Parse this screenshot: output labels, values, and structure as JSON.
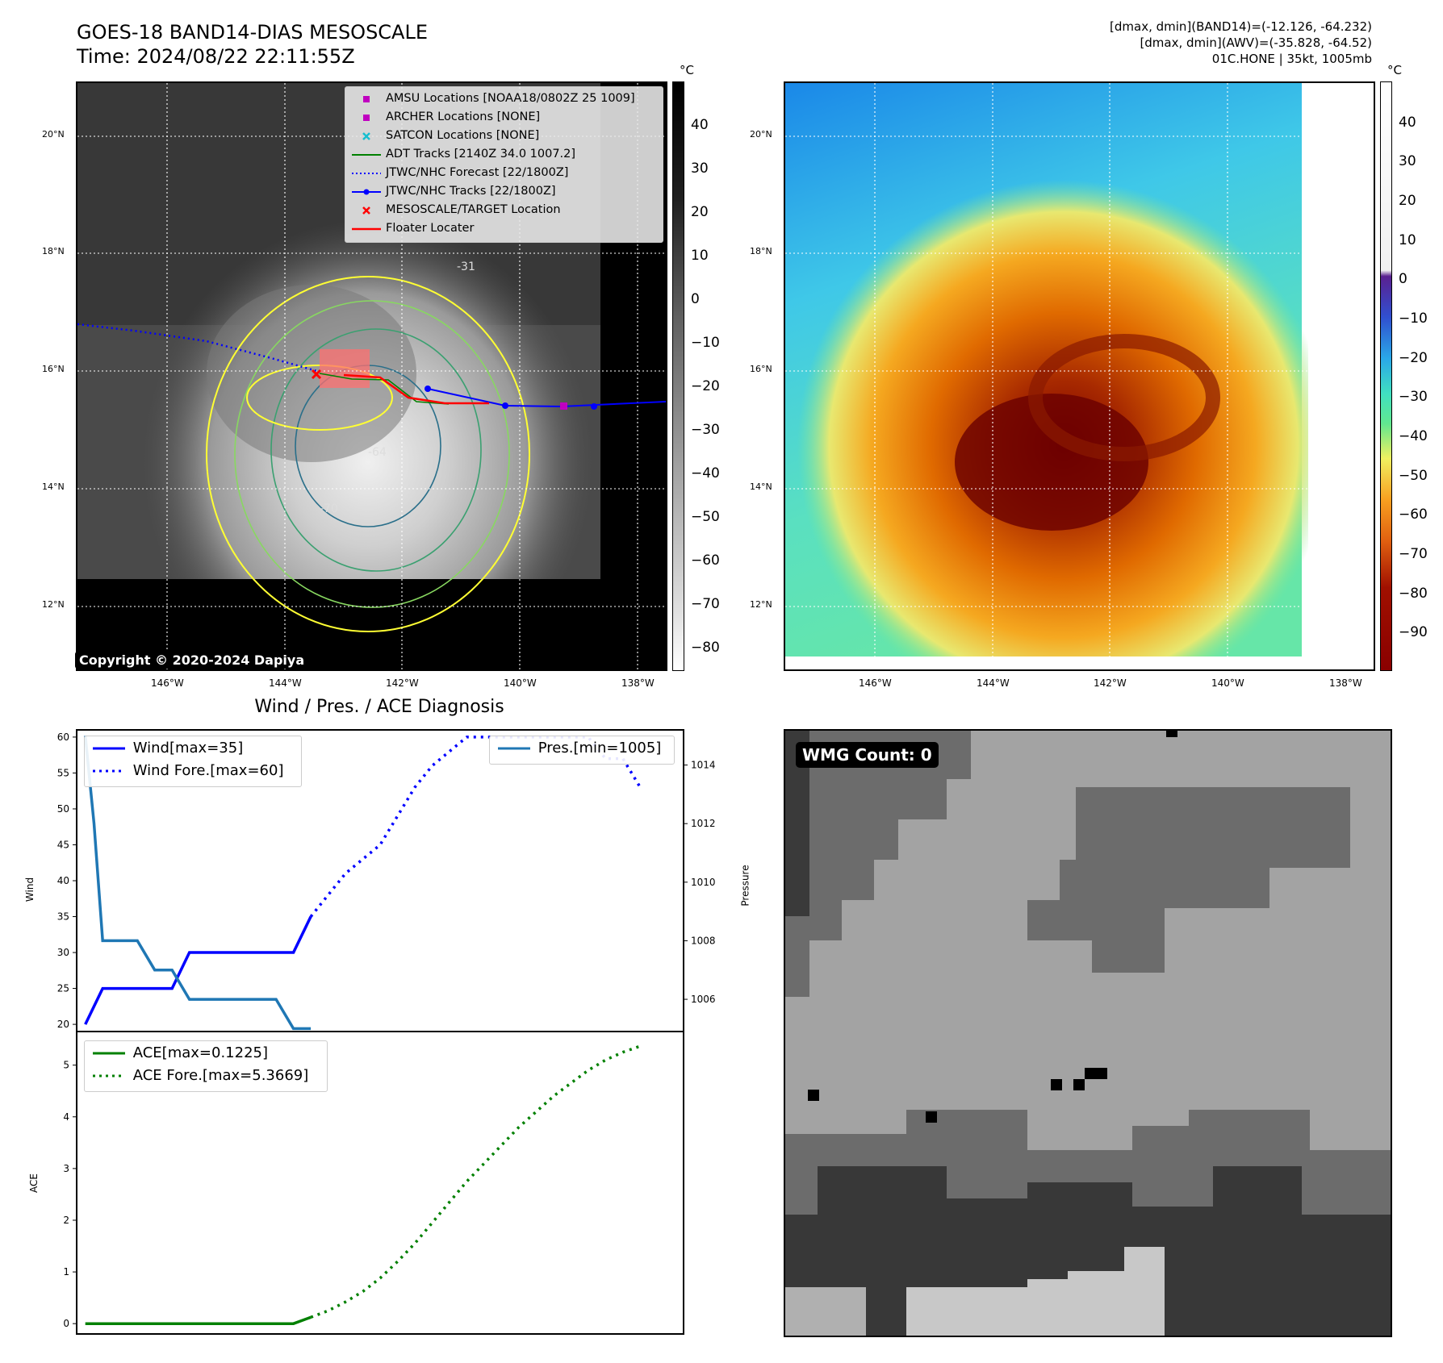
{
  "header": {
    "title": "GOES-18 BAND14-DIAS MESOSCALE",
    "time": "Time: 2024/08/22 22:11:55Z",
    "info_lines": [
      "[dmax, dmin](BAND14)=(-12.126, -64.232)",
      "[dmax, dmin](AWV)=(-35.828, -64.52)",
      "01C.HONE | 35kt, 1005mb"
    ]
  },
  "map": {
    "lat_labels": [
      "20°N",
      "18°N",
      "16°N",
      "14°N",
      "12°N"
    ],
    "lon_labels": [
      "146°W",
      "144°W",
      "142°W",
      "140°W",
      "138°W"
    ],
    "copyright": "Copyright © 2020-2024 Dapiya",
    "contour_labels": [
      "-64",
      "-70",
      "-31"
    ],
    "legend": [
      {
        "label": "AMSU Locations [NOAA18/0802Z 25 1009]",
        "color": "#c000c0",
        "icon": "square-marker-icon"
      },
      {
        "label": "ARCHER Locations [NONE]",
        "color": "#c000c0",
        "icon": "square-marker-icon"
      },
      {
        "label": "SATCON Locations [NONE]",
        "color": "#17becf",
        "icon": "x-marker-icon"
      },
      {
        "label": "ADT Tracks [2140Z 34.0 1007.2]",
        "color": "#008000",
        "icon": "line-icon"
      },
      {
        "label": "JTWC/NHC Forecast [22/1800Z]",
        "color": "#0000ff",
        "icon": "dotted-line-icon"
      },
      {
        "label": "JTWC/NHC Tracks [22/1800Z]",
        "color": "#0000ff",
        "icon": "line-dot-icon"
      },
      {
        "label": "MESOSCALE/TARGET Location",
        "color": "#ff0000",
        "icon": "x-marker-icon"
      },
      {
        "label": "Floater Locater",
        "color": "#ff0000",
        "icon": "line-icon"
      }
    ]
  },
  "colorbar_left": {
    "unit": "°C",
    "ticks": [
      "40",
      "30",
      "20",
      "10",
      "0",
      "−10",
      "−20",
      "−30",
      "−40",
      "−50",
      "−60",
      "−70",
      "−80"
    ]
  },
  "colorbar_right": {
    "unit": "°C",
    "ticks": [
      "40",
      "30",
      "20",
      "10",
      "0",
      "−10",
      "−20",
      "−30",
      "−40",
      "−50",
      "−60",
      "−70",
      "−80",
      "−90"
    ]
  },
  "diagnosis": {
    "title": "Wind / Pres. / ACE Diagnosis",
    "wind_ylabel": "Wind",
    "pres_ylabel": "Pressure",
    "ace_ylabel": "ACE",
    "legend_wind": "Wind[max=35]",
    "legend_wind_fore": "Wind Fore.[max=60]",
    "legend_pres": "Pres.[min=1005]",
    "legend_ace": "ACE[max=0.1225]",
    "legend_ace_fore": "ACE Fore.[max=5.3669]"
  },
  "wmg": {
    "badge": "WMG Count: 0"
  },
  "chart_data": [
    {
      "type": "line",
      "title": "Wind / Pres. / ACE Diagnosis",
      "ylabel": "Wind",
      "ylim": [
        19,
        61
      ],
      "yticks": [
        20,
        25,
        30,
        35,
        40,
        45,
        50,
        55,
        60
      ],
      "series": [
        {
          "name": "Wind[max=35]",
          "style": "solid",
          "color": "#0000ff",
          "x": [
            0,
            1,
            2,
            3,
            4,
            5,
            6,
            7,
            8,
            9,
            10,
            11,
            12,
            13
          ],
          "values": [
            20,
            25,
            25,
            25,
            25,
            25,
            30,
            30,
            30,
            30,
            30,
            30,
            30,
            35
          ]
        },
        {
          "name": "Wind Fore.[max=60]",
          "style": "dotted",
          "color": "#0000ff",
          "x": [
            13,
            14,
            15,
            16,
            17,
            18,
            19,
            20,
            21,
            22,
            23,
            24,
            25,
            26,
            27,
            28,
            29,
            30,
            31,
            32
          ],
          "values": [
            35,
            38,
            41,
            43,
            45,
            49,
            53,
            56,
            58,
            60,
            60,
            60,
            60,
            60,
            60,
            60,
            60,
            57,
            57,
            53
          ]
        }
      ]
    },
    {
      "type": "line",
      "ylabel": "Pressure",
      "ylim": [
        1004.9,
        1015.2
      ],
      "yticks": [
        1006,
        1008,
        1010,
        1012,
        1014
      ],
      "series": [
        {
          "name": "Pres.[min=1005]",
          "style": "solid",
          "color": "#1f77b4",
          "x": [
            0,
            0.5,
            1,
            2,
            3,
            4,
            5,
            6,
            7,
            8,
            9,
            10,
            11,
            12,
            13
          ],
          "values": [
            1015,
            1012,
            1008,
            1008,
            1008,
            1007,
            1007,
            1006,
            1006,
            1006,
            1006,
            1006,
            1006,
            1005,
            1005
          ]
        }
      ]
    },
    {
      "type": "line",
      "ylabel": "ACE",
      "ylim": [
        -0.2,
        5.65
      ],
      "yticks": [
        0,
        1,
        2,
        3,
        4,
        5
      ],
      "series": [
        {
          "name": "ACE[max=0.1225]",
          "style": "solid",
          "color": "#008000",
          "x": [
            0,
            1,
            2,
            3,
            4,
            5,
            6,
            7,
            8,
            9,
            10,
            11,
            12,
            13
          ],
          "values": [
            0,
            0,
            0,
            0,
            0,
            0,
            0,
            0,
            0,
            0,
            0,
            0,
            0,
            0.1225
          ]
        },
        {
          "name": "ACE Fore.[max=5.3669]",
          "style": "dotted",
          "color": "#008000",
          "x": [
            13,
            14,
            15,
            16,
            17,
            18,
            19,
            20,
            21,
            22,
            23,
            24,
            25,
            26,
            27,
            28,
            29,
            30,
            31,
            32
          ],
          "values": [
            0.1225,
            0.25,
            0.42,
            0.62,
            0.88,
            1.2,
            1.55,
            1.95,
            2.35,
            2.75,
            3.1,
            3.45,
            3.8,
            4.1,
            4.4,
            4.65,
            4.9,
            5.1,
            5.25,
            5.3669
          ]
        }
      ]
    }
  ]
}
